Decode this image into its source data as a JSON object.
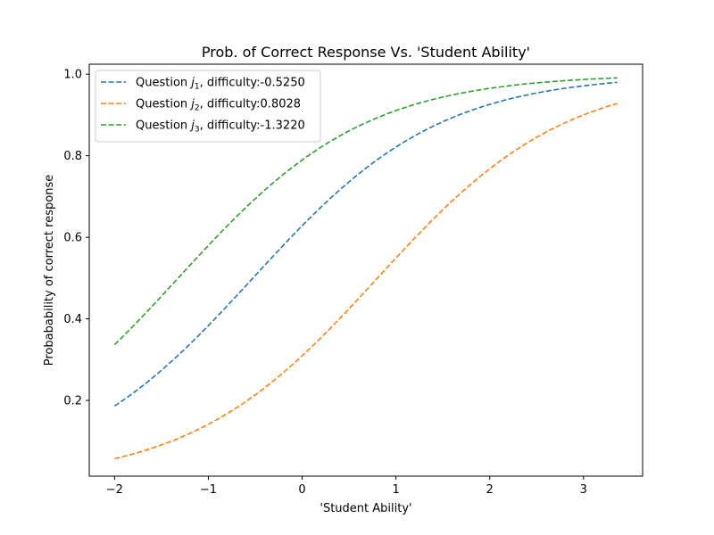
{
  "chart_data": {
    "type": "line",
    "title": "Prob. of Correct Response Vs. 'Student Ability'",
    "xlabel": "'Student Ability'",
    "ylabel": "Probabability of correct response",
    "xlim": [
      -2.27,
      3.63
    ],
    "ylim": [
      0.0143,
      1.0244
    ],
    "xticks": [
      -2,
      -1,
      0,
      1,
      2,
      3
    ],
    "xtick_labels": [
      "−2",
      "−1",
      "0",
      "1",
      "2",
      "3"
    ],
    "yticks": [
      0.2,
      0.4,
      0.6,
      0.8,
      1.0
    ],
    "ytick_labels": [
      "0.2",
      "0.4",
      "0.6",
      "0.8",
      "1.0"
    ],
    "grid": false,
    "legend_position": "upper-left",
    "line_style": "dashed",
    "x_range": [
      -2.0,
      3.36
    ],
    "series": [
      {
        "name": "Question j1, difficulty:-0.5250",
        "legend_prefix": "Question ",
        "legend_var": "j",
        "legend_sub": "1",
        "legend_suffix": ", difficulty:-0.5250",
        "difficulty": -0.525,
        "color": "#1f77b4"
      },
      {
        "name": "Question j2, difficulty:0.8028",
        "legend_prefix": "Question ",
        "legend_var": "j",
        "legend_sub": "2",
        "legend_suffix": ", difficulty:0.8028",
        "difficulty": 0.8028,
        "color": "#ff7f0e"
      },
      {
        "name": "Question j3, difficulty:-1.3220",
        "legend_prefix": "Question ",
        "legend_var": "j",
        "legend_sub": "3",
        "legend_suffix": ", difficulty:-1.3220",
        "difficulty": -1.322,
        "color": "#2ca02c"
      }
    ]
  }
}
